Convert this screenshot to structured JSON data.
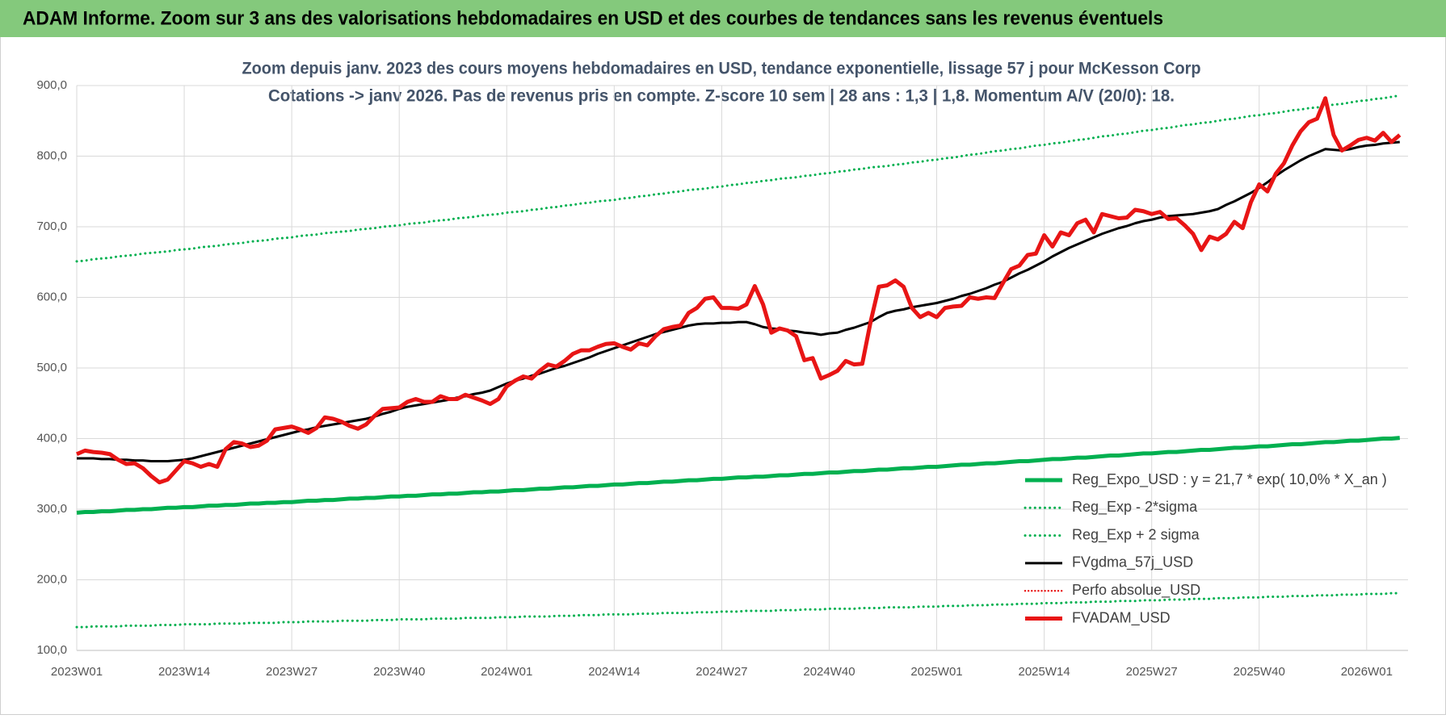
{
  "header": "ADAM Informe. Zoom sur 3 ans des valorisations hebdomadaires en USD et des courbes de tendances sans les revenus éventuels",
  "chart_data": {
    "type": "line",
    "title": "Zoom depuis janv. 2023 des cours moyens hebdomadaires en USD, tendance exponentielle, lissage 57 j pour McKesson Corp",
    "subtitle": "Cotations -> janv 2026. Pas de revenus pris en compte. Z-score 10 sem | 28 ans : 1,3 | 1,8. Momentum A/V (20/0): 18.",
    "grid": true,
    "legend": "lower right",
    "ylim": [
      100,
      900
    ],
    "yticks": [
      {
        "value": 100,
        "label": "100,0"
      },
      {
        "value": 200,
        "label": "200,0"
      },
      {
        "value": 300,
        "label": "300,0"
      },
      {
        "value": 400,
        "label": "400,0"
      },
      {
        "value": 500,
        "label": "500,0"
      },
      {
        "value": 600,
        "label": "600,0"
      },
      {
        "value": 700,
        "label": "700,0"
      },
      {
        "value": 800,
        "label": "800,0"
      },
      {
        "value": 900,
        "label": "900,0"
      }
    ],
    "categories": [
      "2023W01",
      null,
      null,
      null,
      null,
      null,
      null,
      null,
      null,
      null,
      null,
      null,
      null,
      "2023W14",
      null,
      null,
      null,
      null,
      null,
      null,
      null,
      null,
      null,
      null,
      null,
      null,
      "2023W27",
      null,
      null,
      null,
      null,
      null,
      null,
      null,
      null,
      null,
      null,
      null,
      null,
      "2023W40",
      null,
      null,
      null,
      null,
      null,
      null,
      null,
      null,
      null,
      null,
      null,
      null,
      "2024W01",
      null,
      null,
      null,
      null,
      null,
      null,
      null,
      null,
      null,
      null,
      null,
      null,
      "2024W14",
      null,
      null,
      null,
      null,
      null,
      null,
      null,
      null,
      null,
      null,
      null,
      null,
      "2024W27",
      null,
      null,
      null,
      null,
      null,
      null,
      null,
      null,
      null,
      null,
      null,
      null,
      "2024W40",
      null,
      null,
      null,
      null,
      null,
      null,
      null,
      null,
      null,
      null,
      null,
      null,
      "2025W01",
      null,
      null,
      null,
      null,
      null,
      null,
      null,
      null,
      null,
      null,
      null,
      null,
      "2025W14",
      null,
      null,
      null,
      null,
      null,
      null,
      null,
      null,
      null,
      null,
      null,
      null,
      "2025W27",
      null,
      null,
      null,
      null,
      null,
      null,
      null,
      null,
      null,
      null,
      null,
      null,
      "2025W40",
      null,
      null,
      null,
      null,
      null,
      null,
      null,
      null,
      null,
      null,
      null,
      null,
      "2026W01",
      null,
      null,
      null,
      null
    ],
    "series": [
      {
        "name": "Reg_Expo_USD : y = 21,7 * exp( 10,0% *  X_an )",
        "color": "#00b050",
        "dash": "solid",
        "weight": "thick",
        "values": [
          295,
          296,
          296,
          297,
          297,
          298,
          299,
          299,
          300,
          300,
          301,
          302,
          302,
          303,
          303,
          304,
          305,
          305,
          306,
          306,
          307,
          308,
          308,
          309,
          309,
          310,
          310,
          311,
          312,
          312,
          313,
          313,
          314,
          315,
          315,
          316,
          316,
          317,
          318,
          318,
          319,
          319,
          320,
          321,
          321,
          322,
          322,
          323,
          324,
          324,
          325,
          325,
          326,
          327,
          327,
          328,
          329,
          329,
          330,
          331,
          331,
          332,
          333,
          333,
          334,
          335,
          335,
          336,
          337,
          337,
          338,
          339,
          339,
          340,
          341,
          341,
          342,
          343,
          343,
          344,
          345,
          345,
          346,
          346,
          347,
          348,
          348,
          349,
          350,
          350,
          351,
          352,
          352,
          353,
          354,
          354,
          355,
          356,
          356,
          357,
          358,
          358,
          359,
          360,
          360,
          361,
          362,
          363,
          363,
          364,
          365,
          365,
          366,
          367,
          368,
          368,
          369,
          370,
          371,
          371,
          372,
          373,
          373,
          374,
          375,
          376,
          376,
          377,
          378,
          379,
          379,
          380,
          381,
          381,
          382,
          383,
          384,
          384,
          385,
          386,
          387,
          387,
          388,
          389,
          389,
          390,
          391,
          392,
          392,
          393,
          394,
          395,
          395,
          396,
          397,
          397,
          398,
          399,
          400,
          400,
          401
        ]
      },
      {
        "name": "Reg_Exp - 2*sigma",
        "color": "#00b050",
        "dash": "dotted",
        "weight": "normal",
        "values": [
          133,
          133,
          134,
          134,
          134,
          134,
          135,
          135,
          135,
          135,
          136,
          136,
          136,
          137,
          137,
          137,
          137,
          138,
          138,
          138,
          138,
          139,
          139,
          139,
          139,
          140,
          140,
          140,
          141,
          141,
          141,
          141,
          142,
          142,
          142,
          142,
          143,
          143,
          143,
          144,
          144,
          144,
          144,
          145,
          145,
          145,
          145,
          146,
          146,
          146,
          146,
          147,
          147,
          147,
          148,
          148,
          148,
          148,
          149,
          149,
          149,
          150,
          150,
          150,
          151,
          151,
          151,
          151,
          152,
          152,
          152,
          153,
          153,
          153,
          153,
          154,
          154,
          154,
          155,
          155,
          155,
          156,
          156,
          156,
          156,
          157,
          157,
          157,
          158,
          158,
          158,
          159,
          159,
          159,
          159,
          160,
          160,
          160,
          161,
          161,
          161,
          161,
          162,
          162,
          162,
          163,
          163,
          163,
          164,
          164,
          164,
          165,
          165,
          165,
          166,
          166,
          166,
          167,
          167,
          167,
          168,
          168,
          168,
          169,
          169,
          169,
          170,
          170,
          170,
          171,
          171,
          171,
          172,
          172,
          172,
          173,
          173,
          173,
          174,
          174,
          174,
          175,
          175,
          175,
          176,
          176,
          176,
          177,
          177,
          177,
          178,
          178,
          178,
          179,
          179,
          179,
          180,
          180,
          180,
          181,
          181
        ]
      },
      {
        "name": "Reg_Exp + 2 sigma",
        "color": "#00b050",
        "dash": "dotted",
        "weight": "normal",
        "values": [
          651,
          652,
          654,
          655,
          656,
          658,
          659,
          660,
          662,
          663,
          664,
          665,
          667,
          668,
          669,
          671,
          672,
          673,
          675,
          676,
          677,
          679,
          680,
          681,
          683,
          684,
          685,
          687,
          688,
          689,
          691,
          692,
          693,
          694,
          696,
          697,
          698,
          700,
          701,
          702,
          704,
          705,
          706,
          708,
          709,
          710,
          712,
          713,
          714,
          716,
          717,
          718,
          720,
          721,
          722,
          724,
          725,
          727,
          728,
          730,
          731,
          733,
          734,
          736,
          737,
          738,
          740,
          741,
          743,
          744,
          746,
          747,
          749,
          750,
          752,
          753,
          754,
          756,
          757,
          759,
          760,
          762,
          763,
          765,
          766,
          768,
          769,
          770,
          772,
          773,
          775,
          776,
          778,
          779,
          781,
          782,
          784,
          785,
          786,
          788,
          789,
          791,
          792,
          794,
          795,
          797,
          798,
          800,
          802,
          803,
          805,
          807,
          808,
          810,
          811,
          813,
          815,
          816,
          818,
          819,
          821,
          823,
          824,
          826,
          828,
          829,
          831,
          832,
          834,
          836,
          837,
          839,
          840,
          842,
          844,
          845,
          847,
          848,
          850,
          852,
          853,
          855,
          857,
          858,
          860,
          861,
          863,
          865,
          866,
          868,
          869,
          871,
          873,
          874,
          876,
          878,
          879,
          881,
          882,
          884,
          886
        ]
      },
      {
        "name": "FVgdma_57j_USD",
        "color": "#000000",
        "dash": "solid",
        "weight": "normal",
        "values": [
          372,
          372,
          372,
          371,
          371,
          370,
          370,
          369,
          369,
          368,
          368,
          368,
          369,
          370,
          372,
          375,
          378,
          381,
          384,
          387,
          390,
          393,
          396,
          399,
          402,
          405,
          408,
          411,
          413,
          416,
          418,
          420,
          422,
          424,
          426,
          428,
          431,
          435,
          438,
          442,
          445,
          447,
          449,
          451,
          453,
          455,
          458,
          460,
          463,
          465,
          468,
          473,
          478,
          482,
          485,
          489,
          492,
          496,
          500,
          503,
          507,
          511,
          515,
          520,
          524,
          528,
          532,
          536,
          540,
          544,
          548,
          551,
          554,
          557,
          560,
          562,
          563,
          563,
          564,
          564,
          565,
          565,
          562,
          558,
          556,
          555,
          553,
          552,
          550,
          549,
          547,
          549,
          550,
          554,
          557,
          561,
          565,
          572,
          578,
          581,
          583,
          586,
          588,
          590,
          592,
          595,
          598,
          602,
          605,
          609,
          613,
          618,
          622,
          628,
          634,
          639,
          645,
          651,
          658,
          664,
          670,
          675,
          680,
          685,
          690,
          694,
          698,
          701,
          705,
          708,
          710,
          713,
          715,
          716,
          717,
          718,
          720,
          722,
          725,
          731,
          736,
          742,
          748,
          755,
          763,
          772,
          780,
          787,
          794,
          800,
          805,
          810,
          809,
          808,
          810,
          813,
          815,
          816,
          818,
          819,
          820
        ]
      },
      {
        "name": "Perfo absolue_USD",
        "color": "#e81515",
        "dash": "dotted",
        "weight": "thin",
        "values": [
          null,
          null,
          null,
          null,
          null,
          null,
          null,
          null,
          null,
          null,
          null,
          null,
          null,
          null,
          null,
          null,
          null,
          null,
          null,
          null,
          null,
          null,
          null,
          null,
          null,
          null,
          null,
          null,
          null,
          null,
          null,
          null,
          null,
          null,
          null,
          null,
          null,
          null,
          null,
          null,
          null,
          null,
          null,
          null,
          null,
          null,
          null,
          null,
          null,
          null,
          null,
          null,
          null,
          null,
          null,
          null,
          null,
          null,
          null,
          null,
          null,
          null,
          null,
          null,
          null,
          null,
          null,
          null,
          null,
          null,
          null,
          null,
          null,
          null,
          null,
          null,
          null,
          null,
          null,
          null,
          null,
          null,
          null,
          null,
          null,
          null,
          null,
          null,
          null,
          null,
          null,
          null,
          null,
          null,
          null,
          null,
          null,
          null,
          null,
          null,
          null,
          null,
          null,
          null,
          null,
          null,
          null,
          null,
          null,
          null,
          null,
          null,
          null,
          null,
          null,
          null,
          null,
          null,
          null,
          null,
          null,
          null,
          null,
          null,
          null,
          null,
          null,
          null,
          null,
          null,
          null,
          null,
          null,
          null,
          null,
          null,
          null,
          null,
          null,
          null,
          null,
          null,
          null,
          null,
          null,
          null,
          null,
          null,
          null,
          null,
          null,
          null,
          null,
          null,
          null,
          null,
          null,
          null,
          null,
          null,
          null
        ]
      },
      {
        "name": "FVADAM_USD",
        "color": "#e81515",
        "dash": "solid",
        "weight": "thick",
        "values": [
          378,
          383,
          381,
          380,
          378,
          370,
          364,
          365,
          358,
          347,
          338,
          342,
          355,
          368,
          365,
          360,
          364,
          360,
          385,
          395,
          393,
          388,
          390,
          397,
          413,
          415,
          417,
          413,
          408,
          415,
          430,
          428,
          424,
          418,
          414,
          420,
          432,
          442,
          443,
          444,
          452,
          456,
          452,
          452,
          460,
          456,
          456,
          462,
          458,
          454,
          449,
          456,
          474,
          482,
          488,
          485,
          496,
          505,
          502,
          510,
          520,
          525,
          525,
          530,
          534,
          535,
          530,
          526,
          535,
          532,
          545,
          555,
          558,
          560,
          578,
          585,
          598,
          600,
          585,
          585,
          584,
          590,
          616,
          590,
          550,
          556,
          553,
          545,
          511,
          514,
          485,
          490,
          496,
          510,
          505,
          506,
          565,
          615,
          617,
          624,
          615,
          585,
          572,
          578,
          572,
          585,
          587,
          588,
          600,
          598,
          600,
          599,
          620,
          640,
          645,
          660,
          662,
          688,
          672,
          692,
          688,
          705,
          710,
          692,
          718,
          715,
          712,
          713,
          724,
          722,
          718,
          721,
          711,
          712,
          702,
          690,
          667,
          686,
          682,
          690,
          707,
          698,
          735,
          760,
          750,
          775,
          790,
          815,
          835,
          848,
          853,
          882,
          830,
          808,
          815,
          823,
          826,
          822,
          833,
          820,
          830
        ]
      }
    ]
  }
}
